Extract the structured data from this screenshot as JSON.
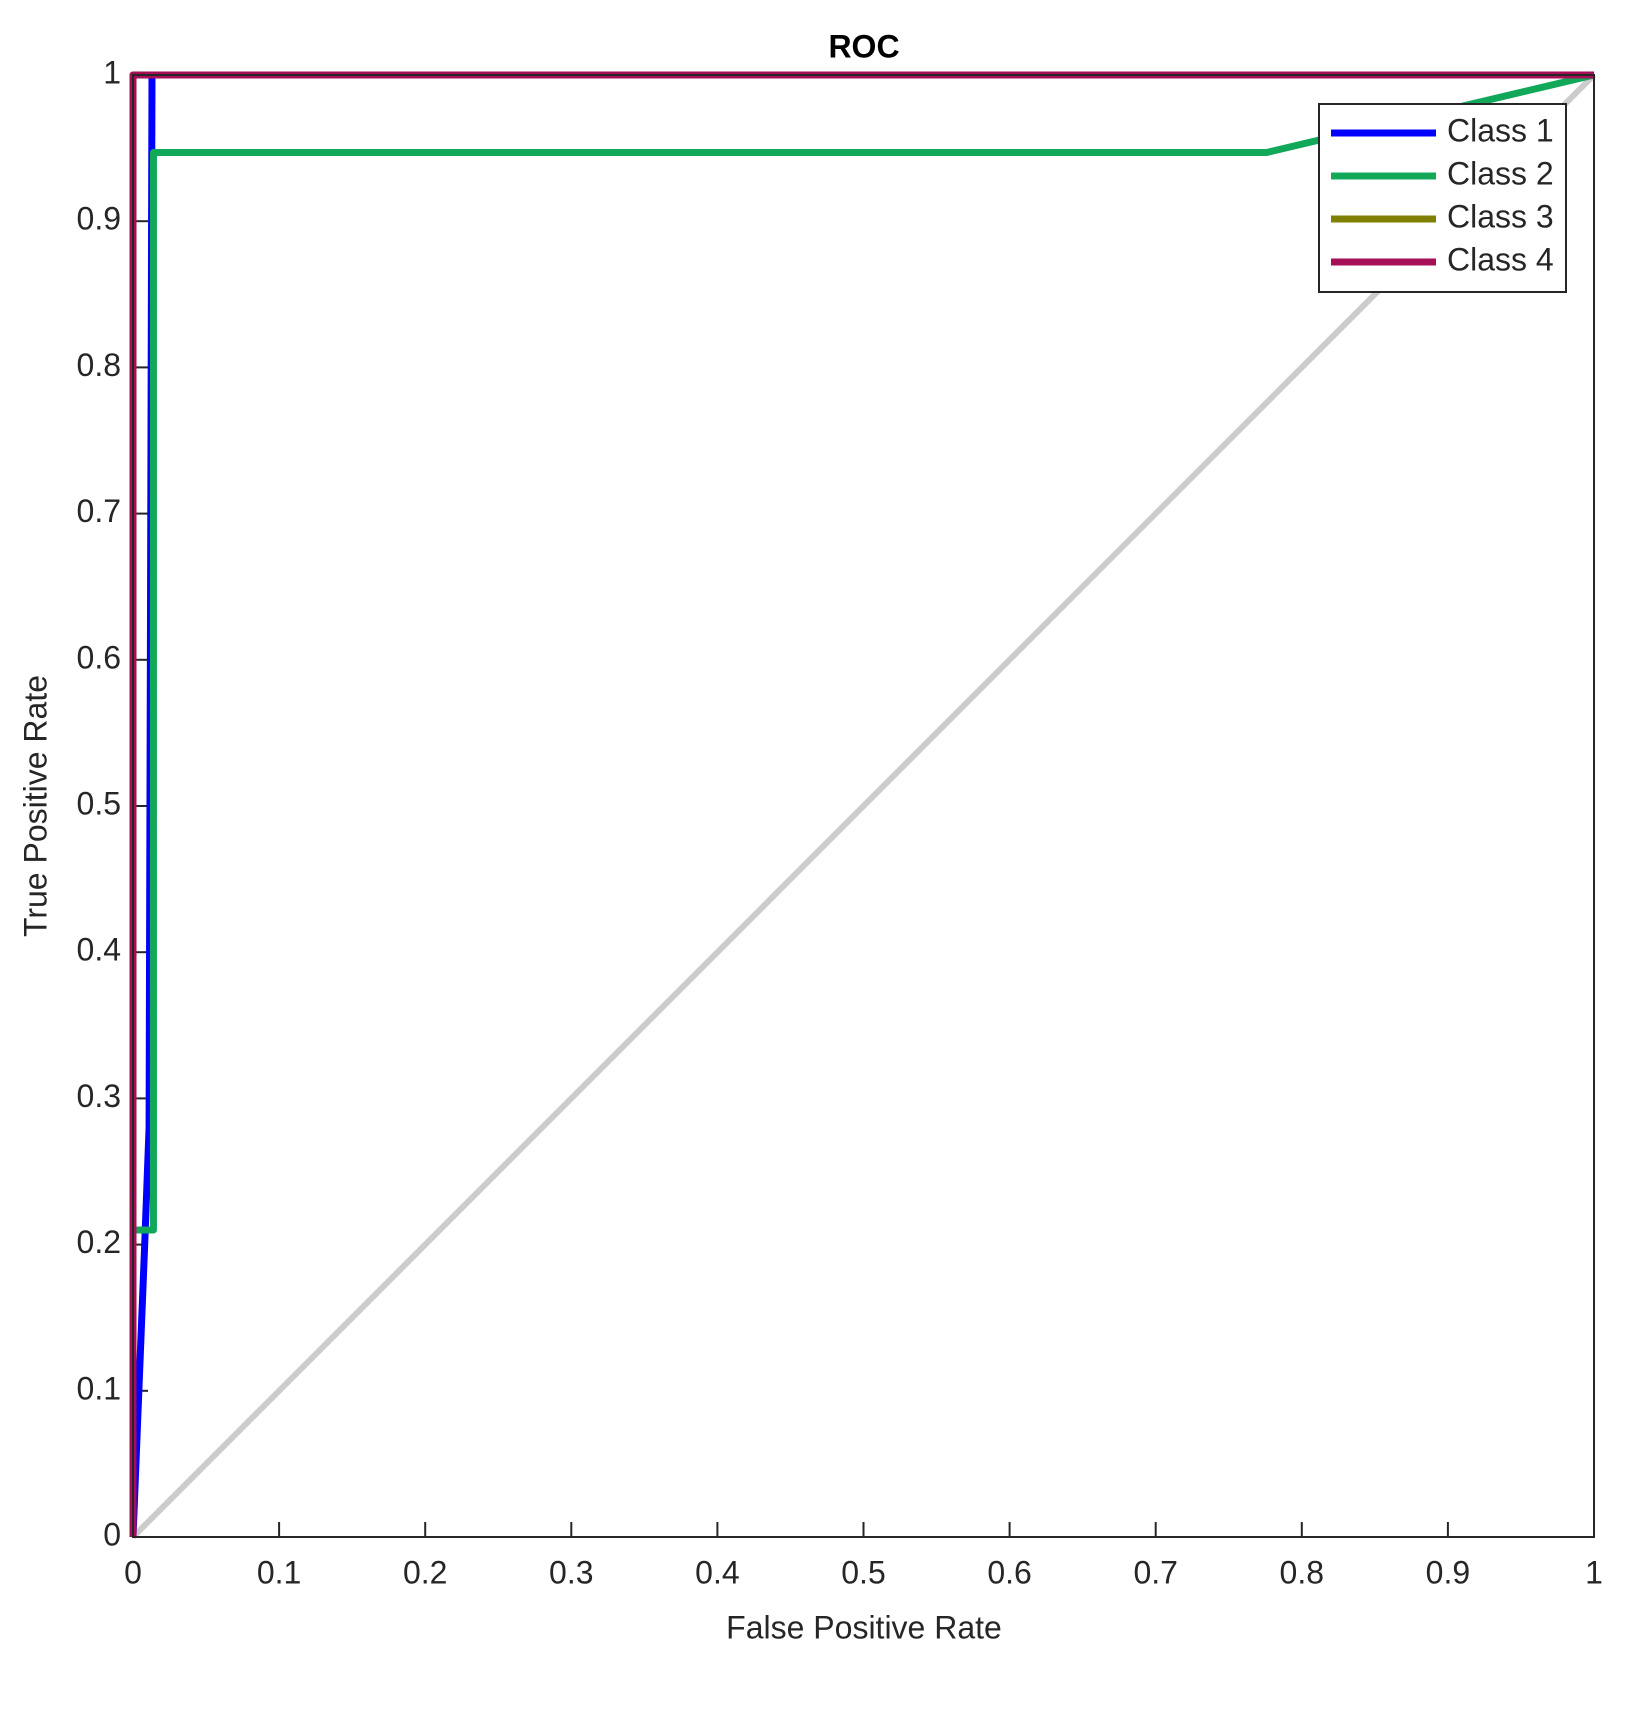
{
  "chart_data": {
    "type": "line",
    "title": "ROC",
    "x_label": "False Positive Rate",
    "y_label": "True Positive Rate",
    "xlim": [
      0,
      1
    ],
    "ylim": [
      0,
      1
    ],
    "xticks": [
      0,
      0.1,
      0.2,
      0.3,
      0.4,
      0.5,
      0.6,
      0.7,
      0.8,
      0.9,
      1
    ],
    "yticks": [
      0,
      0.1,
      0.2,
      0.3,
      0.4,
      0.5,
      0.6,
      0.7,
      0.8,
      0.9,
      1
    ],
    "grid": false,
    "legend": "upper right",
    "series": [
      {
        "name": "Class 1",
        "color": "#0000ff",
        "x": [
          0,
          0.008,
          0.011,
          0.013,
          1
        ],
        "values": [
          0,
          0.2,
          0.28,
          1,
          1
        ]
      },
      {
        "name": "Class 2",
        "color": "#12a85a",
        "x": [
          0,
          0.014,
          0.014,
          0.776,
          1
        ],
        "values": [
          0.21,
          0.21,
          0.947,
          0.947,
          1
        ]
      },
      {
        "name": "Class 3",
        "color": "#808000",
        "x": [
          0,
          0,
          1
        ],
        "values": [
          0,
          1,
          1
        ]
      },
      {
        "name": "Class 4",
        "color": "#a50f56",
        "x": [
          0,
          0,
          1
        ],
        "values": [
          0,
          1,
          1
        ]
      }
    ]
  }
}
